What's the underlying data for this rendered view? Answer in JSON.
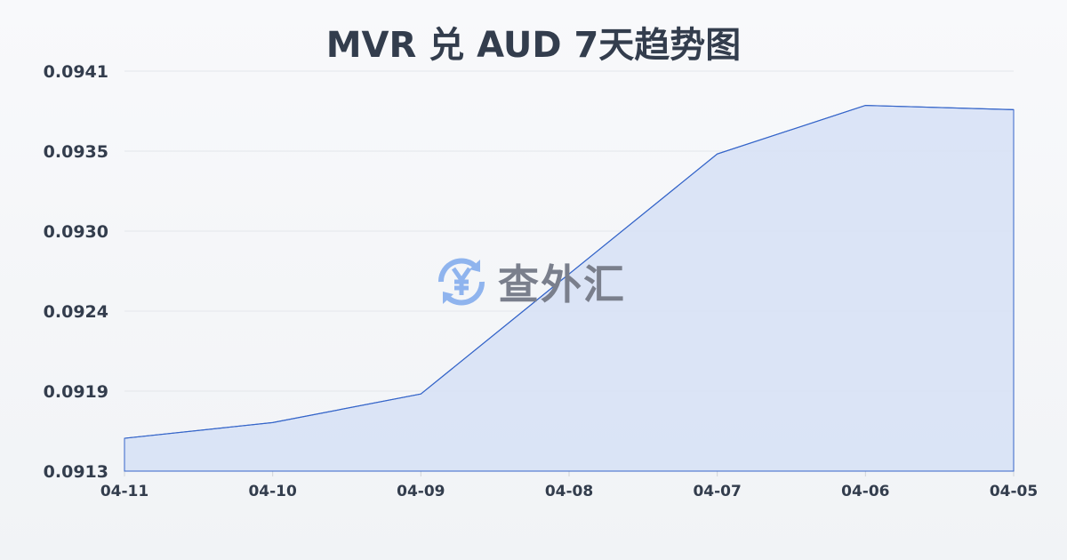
{
  "chart_data": {
    "type": "area",
    "title": "MVR 兑 AUD 7天趋势图",
    "xlabel": "",
    "ylabel": "",
    "categories": [
      "04-11",
      "04-10",
      "04-09",
      "04-08",
      "04-07",
      "04-06",
      "04-05"
    ],
    "values": [
      0.09153,
      0.09164,
      0.09184,
      0.09268,
      0.09352,
      0.09386,
      0.09383
    ],
    "ylim": [
      0.0913,
      0.0941
    ],
    "yticks": [
      "0.0913",
      "0.0919",
      "0.0924",
      "0.0930",
      "0.0935",
      "0.0941"
    ],
    "grid": true,
    "legend": "none",
    "colors": {
      "line": "#3565c9",
      "fill": "#d6e1f6"
    }
  },
  "watermark": {
    "text": "查外汇",
    "icon": "yen-exchange-icon",
    "color": "#8fb4ee"
  }
}
